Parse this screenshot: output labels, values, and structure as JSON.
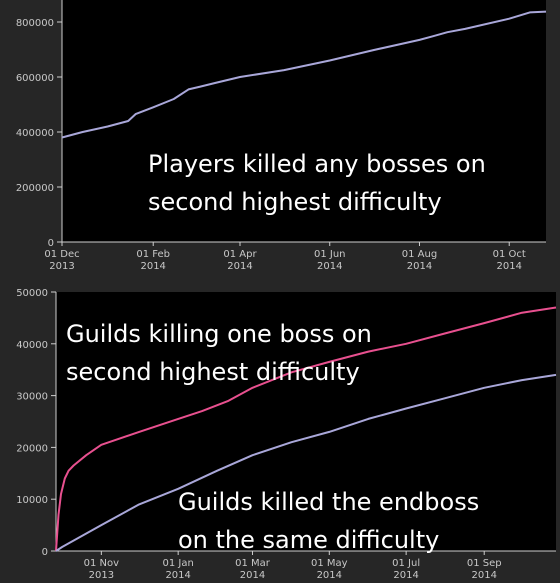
{
  "chart_data": [
    {
      "type": "line",
      "title": "",
      "xlabel": "",
      "ylabel": "",
      "x_ticks": [
        "01 Dec\n2013",
        "01 Feb\n2014",
        "01 Apr\n2014",
        "01 Jun\n2014",
        "01 Aug\n2014",
        "01 Oct\n2014"
      ],
      "x_tick_dates": [
        "2013-12-01",
        "2014-02-01",
        "2014-04-01",
        "2014-06-01",
        "2014-08-01",
        "2014-10-01"
      ],
      "xlim": [
        "2013-12-01",
        "2014-10-26"
      ],
      "y_ticks": [
        "0",
        "200000",
        "400000",
        "600000",
        "800000"
      ],
      "y_tick_values": [
        0,
        200000,
        400000,
        600000,
        800000
      ],
      "ylim": [
        0,
        880000
      ],
      "annotation": [
        "Players killed any bosses on",
        "second highest difficulty"
      ],
      "grid": false,
      "series": [
        {
          "color": "#a9a7d9",
          "x": [
            "2013-12-01",
            "2013-12-15",
            "2014-01-01",
            "2014-01-15",
            "2014-01-20",
            "2014-02-01",
            "2014-02-15",
            "2014-02-25",
            "2014-03-05",
            "2014-03-15",
            "2014-04-01",
            "2014-05-01",
            "2014-06-01",
            "2014-07-01",
            "2014-08-01",
            "2014-08-10",
            "2014-08-20",
            "2014-09-01",
            "2014-10-01",
            "2014-10-15",
            "2014-10-26"
          ],
          "y": [
            380000,
            400000,
            420000,
            440000,
            465000,
            490000,
            520000,
            555000,
            565000,
            578000,
            600000,
            625000,
            660000,
            698000,
            735000,
            748000,
            763000,
            775000,
            812000,
            835000,
            838000
          ]
        }
      ]
    },
    {
      "type": "line",
      "title": "",
      "xlabel": "",
      "ylabel": "",
      "x_ticks": [
        "01 Nov\n2013",
        "01 Jan\n2014",
        "01 Mar\n2014",
        "01 May\n2014",
        "01 Jul\n2014",
        "01 Sep\n2014"
      ],
      "x_tick_dates": [
        "2013-11-01",
        "2014-01-01",
        "2014-03-01",
        "2014-05-01",
        "2014-07-01",
        "2014-09-01"
      ],
      "xlim": [
        "2013-09-26",
        "2014-10-28"
      ],
      "y_ticks": [
        "0",
        "10000",
        "20000",
        "30000",
        "40000",
        "50000"
      ],
      "y_tick_values": [
        0,
        10000,
        20000,
        30000,
        40000,
        50000
      ],
      "ylim": [
        0,
        50000
      ],
      "annotations": [
        [
          "Guilds killing one boss on",
          "second highest        difficulty"
        ],
        [
          "Guilds killed the endboss",
          "on the same difficulty"
        ]
      ],
      "grid": false,
      "series": [
        {
          "color": "#e8508f",
          "x": [
            "2013-09-26",
            "2013-09-28",
            "2013-09-30",
            "2013-10-03",
            "2013-10-06",
            "2013-10-10",
            "2013-10-20",
            "2013-11-01",
            "2013-12-01",
            "2014-01-01",
            "2014-01-20",
            "2014-02-10",
            "2014-03-01",
            "2014-04-01",
            "2014-05-01",
            "2014-06-01",
            "2014-07-01",
            "2014-08-01",
            "2014-09-01",
            "2014-10-01",
            "2014-10-28"
          ],
          "y": [
            0,
            7000,
            11000,
            14000,
            15500,
            16500,
            18500,
            20500,
            23000,
            25500,
            27000,
            29000,
            31500,
            34500,
            36500,
            38500,
            40000,
            42000,
            44000,
            46000,
            47000
          ]
        },
        {
          "color": "#a9a7d9",
          "x": [
            "2013-09-26",
            "2013-10-01",
            "2013-11-01",
            "2013-12-01",
            "2014-01-01",
            "2014-02-01",
            "2014-03-01",
            "2014-04-01",
            "2014-05-01",
            "2014-06-01",
            "2014-07-01",
            "2014-08-01",
            "2014-09-01",
            "2014-10-01",
            "2014-10-28"
          ],
          "y": [
            0,
            800,
            5000,
            9000,
            12000,
            15500,
            18500,
            21000,
            23000,
            25500,
            27500,
            29500,
            31500,
            33000,
            34000
          ]
        }
      ]
    }
  ]
}
